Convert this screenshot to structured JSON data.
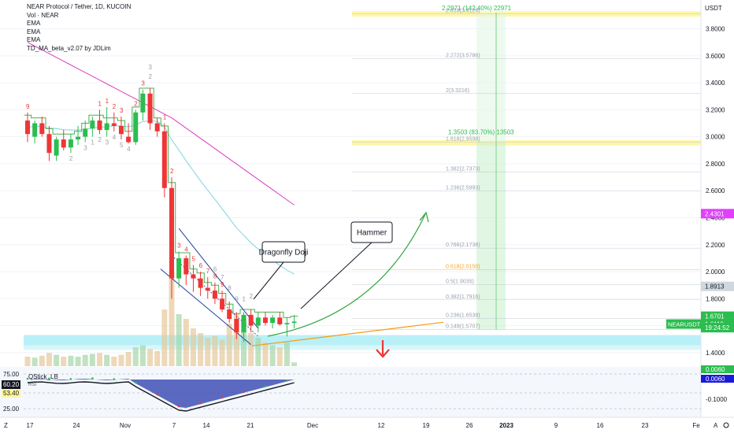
{
  "header": {
    "title": "NEAR Protocol / Tether, 1D, KUCOIN",
    "indicators": [
      "Vol · NEAR",
      "EMA",
      "EMA",
      "EMA",
      "TD_MA_beta_v2.07 by JDLim"
    ]
  },
  "chart_data": {
    "type": "candlestick",
    "y_axis": {
      "unit": "USDT",
      "ticks": [
        "3.8000",
        "3.6000",
        "3.4000",
        "3.2000",
        "3.0000",
        "2.8000",
        "2.6000",
        "2.4000",
        "2.2000",
        "2.0000",
        "1.8000",
        "1.6000",
        "1.4000"
      ],
      "range": [
        1.3,
        3.99
      ]
    },
    "x_axis": {
      "ticks": [
        "17",
        "24",
        "Nov",
        "7",
        "14",
        "21",
        "Dec",
        "12",
        "19",
        "26",
        "2023",
        "9",
        "16",
        "23",
        "Fe"
      ]
    },
    "candles": [
      {
        "o": 3.12,
        "h": 3.18,
        "l": 2.96,
        "c": 3.02
      },
      {
        "o": 3.0,
        "h": 3.12,
        "l": 2.95,
        "c": 3.1
      },
      {
        "o": 3.1,
        "h": 3.15,
        "l": 3.0,
        "c": 3.02
      },
      {
        "o": 3.02,
        "h": 3.08,
        "l": 2.82,
        "c": 2.88
      },
      {
        "o": 2.86,
        "h": 3.0,
        "l": 2.82,
        "c": 2.98
      },
      {
        "o": 2.98,
        "h": 3.05,
        "l": 2.9,
        "c": 2.92
      },
      {
        "o": 2.92,
        "h": 3.02,
        "l": 2.88,
        "c": 2.98
      },
      {
        "o": 2.98,
        "h": 3.08,
        "l": 2.94,
        "c": 3.0
      },
      {
        "o": 3.0,
        "h": 3.12,
        "l": 2.96,
        "c": 3.06
      },
      {
        "o": 3.06,
        "h": 3.15,
        "l": 3.0,
        "c": 3.12
      },
      {
        "o": 3.12,
        "h": 3.2,
        "l": 3.02,
        "c": 3.05
      },
      {
        "o": 3.05,
        "h": 3.22,
        "l": 3.0,
        "c": 3.1
      },
      {
        "o": 3.1,
        "h": 3.18,
        "l": 3.04,
        "c": 3.08
      },
      {
        "o": 3.08,
        "h": 3.15,
        "l": 2.98,
        "c": 3.02
      },
      {
        "o": 3.0,
        "h": 3.1,
        "l": 2.95,
        "c": 2.96
      },
      {
        "o": 2.96,
        "h": 3.2,
        "l": 2.94,
        "c": 3.18
      },
      {
        "o": 3.18,
        "h": 3.35,
        "l": 3.12,
        "c": 3.32
      },
      {
        "o": 3.32,
        "h": 3.36,
        "l": 3.05,
        "c": 3.1
      },
      {
        "o": 3.1,
        "h": 3.14,
        "l": 3.0,
        "c": 3.04
      },
      {
        "o": 3.04,
        "h": 3.1,
        "l": 2.55,
        "c": 2.62
      },
      {
        "o": 2.62,
        "h": 2.7,
        "l": 1.8,
        "c": 1.95
      },
      {
        "o": 1.95,
        "h": 2.15,
        "l": 1.88,
        "c": 2.1
      },
      {
        "o": 2.1,
        "h": 2.12,
        "l": 1.9,
        "c": 1.98
      },
      {
        "o": 1.98,
        "h": 2.05,
        "l": 1.85,
        "c": 1.95
      },
      {
        "o": 1.95,
        "h": 2.0,
        "l": 1.82,
        "c": 1.88
      },
      {
        "o": 1.88,
        "h": 1.96,
        "l": 1.8,
        "c": 1.86
      },
      {
        "o": 1.86,
        "h": 1.92,
        "l": 1.76,
        "c": 1.8
      },
      {
        "o": 1.8,
        "h": 1.86,
        "l": 1.7,
        "c": 1.72
      },
      {
        "o": 1.72,
        "h": 1.78,
        "l": 1.62,
        "c": 1.65
      },
      {
        "o": 1.65,
        "h": 1.7,
        "l": 1.5,
        "c": 1.55
      },
      {
        "o": 1.55,
        "h": 1.7,
        "l": 1.48,
        "c": 1.68
      },
      {
        "o": 1.68,
        "h": 1.72,
        "l": 1.55,
        "c": 1.6
      },
      {
        "o": 1.6,
        "h": 1.7,
        "l": 1.55,
        "c": 1.66
      },
      {
        "o": 1.66,
        "h": 1.7,
        "l": 1.6,
        "c": 1.62
      },
      {
        "o": 1.62,
        "h": 1.68,
        "l": 1.58,
        "c": 1.66
      },
      {
        "o": 1.66,
        "h": 1.7,
        "l": 1.6,
        "c": 1.61
      },
      {
        "o": 1.61,
        "h": 1.66,
        "l": 1.52,
        "c": 1.62
      },
      {
        "o": 1.62,
        "h": 1.68,
        "l": 1.58,
        "c": 1.63
      }
    ],
    "volume": [
      0.1,
      0.09,
      0.11,
      0.14,
      0.12,
      0.1,
      0.11,
      0.1,
      0.12,
      0.13,
      0.14,
      0.12,
      0.1,
      0.12,
      0.15,
      0.2,
      0.22,
      0.18,
      0.16,
      0.6,
      1.0,
      0.55,
      0.5,
      0.4,
      0.35,
      0.3,
      0.32,
      0.28,
      0.45,
      0.55,
      0.5,
      0.35,
      0.3,
      0.25,
      0.22,
      0.2,
      0.25,
      0.04
    ],
    "fib_levels": [
      {
        "label": "2.618(3.9129)",
        "price": 3.91
      },
      {
        "label": "2.272(3.5786)",
        "price": 3.578
      },
      {
        "label": "2(3.3216)",
        "price": 3.32
      },
      {
        "label": "1.618(2.9598)",
        "price": 2.96
      },
      {
        "label": "1.382(2.7373)",
        "price": 2.737
      },
      {
        "label": "1.236(2.5993)",
        "price": 2.599
      },
      {
        "label": "0.786(2.1738)",
        "price": 2.174
      },
      {
        "label": "0.618(2.0150)",
        "price": 2.015
      },
      {
        "label": "0.5(1.9035)",
        "price": 1.9035
      },
      {
        "label": "0.382(1.7916)",
        "price": 1.7916
      },
      {
        "label": "0.236(1.6539)",
        "price": 1.654
      },
      {
        "label": "0.149(1.5707)",
        "price": 1.571
      }
    ],
    "targets": [
      {
        "label": "2.2971 (142.40%) 22971",
        "price": 3.92
      },
      {
        "label": "1.3503 (83.70%) 13503",
        "price": 2.96
      }
    ],
    "annotations": [
      {
        "text": "Dragonfly Doji"
      },
      {
        "text": "Hammer"
      }
    ],
    "td_labels_red": [
      "9",
      "1",
      "1",
      "2",
      "3",
      "2",
      "3",
      "1",
      "2",
      "3",
      "4",
      "5",
      "6",
      "7",
      "8",
      "9"
    ],
    "td_labels_gray": [
      "2",
      "3",
      "4",
      "2",
      "3",
      "1",
      "2",
      "3",
      "4",
      "5",
      "6",
      "7",
      "8",
      "9",
      "1",
      "2"
    ],
    "price_tags": [
      {
        "label": "2.4301",
        "color": "#e040fb",
        "price": 2.43
      },
      {
        "label": "1.8913",
        "color": "#cfd8dc",
        "price": 1.891
      },
      {
        "label": "1.6701",
        "color": "#2bbd4f",
        "price": 1.67
      },
      {
        "label": "1.6119",
        "color": "#2bbd4f",
        "price": 1.612
      },
      {
        "label": "19:24:52",
        "color": "#2bbd4f",
        "price": 1.585
      }
    ],
    "symbol_tag": "NEARUSDT",
    "oscillator": {
      "name": "QStick_LB",
      "label_rsi": "RSI",
      "ticks": [
        "75.00",
        "60.20",
        "53.40",
        "25.00"
      ],
      "right_ticks": [
        "0.0060",
        "0.0060",
        "-0.1000"
      ]
    },
    "colors": {
      "up": "#2bbd4f",
      "down": "#ef3535",
      "ema_green": "#4caf50",
      "ema_cyan": "#7dd3e0",
      "ema_pink": "#d940c0",
      "fib_band": "#fff6a0",
      "support_band": "#7fe3f0"
    }
  },
  "footer": {
    "left_letter": "Z",
    "right_letters": [
      "A"
    ],
    "time_icon": "gear-icon"
  }
}
